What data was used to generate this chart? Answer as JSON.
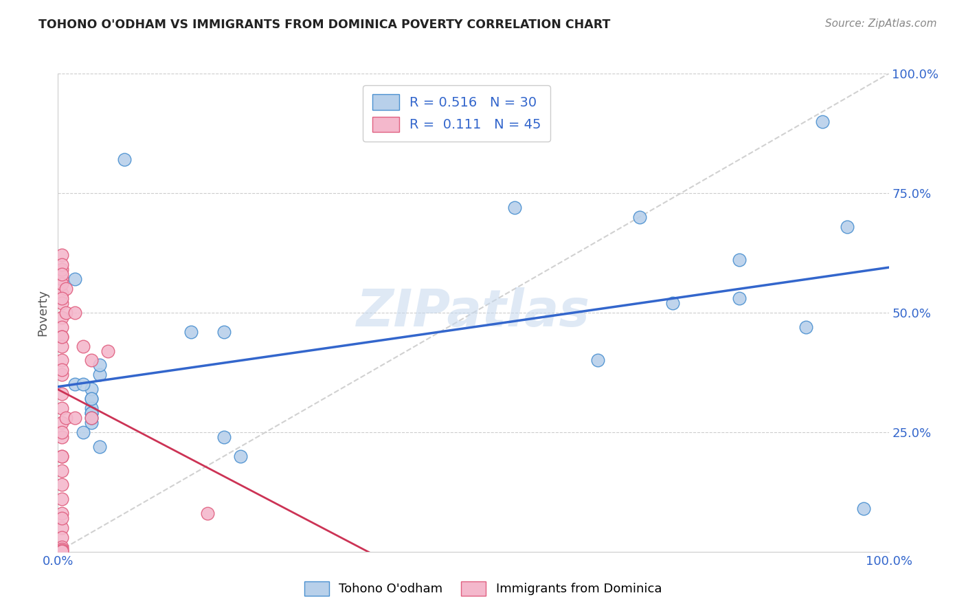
{
  "title": "TOHONO O'ODHAM VS IMMIGRANTS FROM DOMINICA POVERTY CORRELATION CHART",
  "source": "Source: ZipAtlas.com",
  "ylabel": "Poverty",
  "xlim": [
    0,
    1
  ],
  "ylim": [
    0,
    1
  ],
  "blue_label": "Tohono O'odham",
  "pink_label": "Immigrants from Dominica",
  "blue_R": "0.516",
  "blue_N": "30",
  "pink_R": "0.111",
  "pink_N": "45",
  "blue_fill_color": "#b8d0ea",
  "pink_fill_color": "#f4b8cc",
  "blue_edge_color": "#4a90d0",
  "pink_edge_color": "#e06080",
  "blue_line_color": "#3366cc",
  "pink_line_color": "#cc3355",
  "watermark": "ZIPatlas",
  "blue_scatter_x": [
    0.02,
    0.08,
    0.16,
    0.2,
    0.02,
    0.04,
    0.04,
    0.04,
    0.05,
    0.05,
    0.04,
    0.05,
    0.04,
    0.04,
    0.04,
    0.2,
    0.22,
    0.65,
    0.7,
    0.82,
    0.82,
    0.9,
    0.92,
    0.95,
    0.55,
    0.97,
    0.03,
    0.04,
    0.74,
    0.03
  ],
  "blue_scatter_y": [
    0.57,
    0.82,
    0.46,
    0.46,
    0.35,
    0.32,
    0.3,
    0.29,
    0.37,
    0.39,
    0.34,
    0.22,
    0.27,
    0.29,
    0.28,
    0.24,
    0.2,
    0.4,
    0.7,
    0.53,
    0.61,
    0.47,
    0.9,
    0.68,
    0.72,
    0.09,
    0.25,
    0.32,
    0.52,
    0.35
  ],
  "pink_scatter_x": [
    0.005,
    0.005,
    0.005,
    0.005,
    0.005,
    0.005,
    0.005,
    0.005,
    0.005,
    0.005,
    0.005,
    0.005,
    0.005,
    0.005,
    0.005,
    0.005,
    0.005,
    0.005,
    0.005,
    0.005,
    0.005,
    0.005,
    0.005,
    0.005,
    0.005,
    0.005,
    0.005,
    0.005,
    0.005,
    0.01,
    0.01,
    0.01,
    0.02,
    0.02,
    0.03,
    0.04,
    0.04,
    0.06,
    0.18,
    0.005,
    0.005,
    0.005,
    0.005,
    0.005,
    0.005
  ],
  "pink_scatter_y": [
    0.57,
    0.54,
    0.52,
    0.49,
    0.47,
    0.45,
    0.43,
    0.4,
    0.37,
    0.33,
    0.3,
    0.27,
    0.24,
    0.2,
    0.17,
    0.14,
    0.11,
    0.08,
    0.05,
    0.03,
    0.01,
    0.005,
    0.003,
    0.001,
    0.59,
    0.56,
    0.62,
    0.6,
    0.58,
    0.55,
    0.5,
    0.28,
    0.5,
    0.28,
    0.43,
    0.4,
    0.28,
    0.42,
    0.08,
    0.53,
    0.45,
    0.38,
    0.25,
    0.2,
    0.07
  ],
  "background_color": "#ffffff",
  "grid_color": "#cccccc"
}
